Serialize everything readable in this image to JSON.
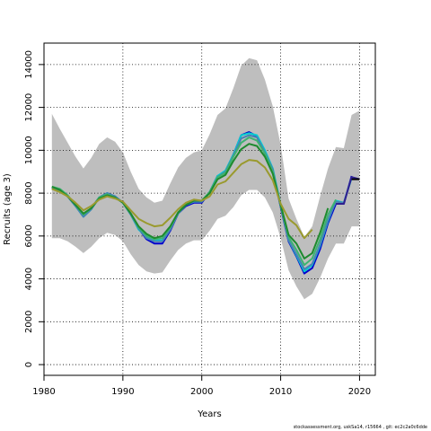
{
  "footer_text": "stockassessment.org, uskSa14, r15664 , git: ec2c2a0c6dde",
  "chart_data": {
    "type": "line",
    "xlabel": "Years",
    "ylabel": "Recruits (age 3)",
    "xlim": [
      1980,
      2022
    ],
    "ylim": [
      -500,
      15000
    ],
    "x_ticks": [
      1980,
      1990,
      2000,
      2010,
      2020
    ],
    "y_ticks": [
      0,
      2000,
      4000,
      6000,
      8000,
      10000,
      12000,
      14000
    ],
    "grid": "dotted",
    "confidence_band": {
      "color": "#bebebe",
      "x": [
        1981,
        1982,
        1983,
        1984,
        1985,
        1986,
        1987,
        1988,
        1989,
        1990,
        1991,
        1992,
        1993,
        1994,
        1995,
        1996,
        1997,
        1998,
        1999,
        2000,
        2001,
        2002,
        2003,
        2004,
        2005,
        2006,
        2007,
        2008,
        2009,
        2010,
        2011,
        2012,
        2013,
        2014,
        2015,
        2016,
        2017,
        2018,
        2019,
        2020
      ],
      "lower": [
        5900,
        5900,
        5750,
        5500,
        5200,
        5500,
        5900,
        6150,
        6050,
        5750,
        5150,
        4650,
        4350,
        4250,
        4300,
        4850,
        5350,
        5650,
        5800,
        5800,
        6250,
        6800,
        6950,
        7350,
        7900,
        8150,
        8150,
        7800,
        7100,
        5900,
        4400,
        3650,
        3050,
        3300,
        4050,
        4950,
        5650,
        5650,
        6450,
        6450
      ],
      "upper": [
        11700,
        11000,
        10350,
        9700,
        9150,
        9650,
        10300,
        10600,
        10400,
        9900,
        9000,
        8200,
        7800,
        7550,
        7650,
        8450,
        9200,
        9650,
        9900,
        10000,
        10750,
        11650,
        11950,
        12900,
        13950,
        14300,
        14200,
        13300,
        12050,
        10250,
        7750,
        6800,
        5950,
        6450,
        7850,
        9150,
        10150,
        10100,
        11650,
        11850
      ]
    },
    "series": [
      {
        "color": "#0000cd",
        "values": [
          8250,
          8150,
          7850,
          7400,
          6950,
          7300,
          7800,
          8000,
          7850,
          7550,
          7050,
          6350,
          5850,
          5650,
          5650,
          6250,
          7050,
          7400,
          7550,
          7550,
          8050,
          8800,
          9000,
          9800,
          10700,
          10850,
          10650,
          9850,
          9050,
          7350,
          5750,
          5050,
          4250,
          4500,
          5400,
          6600,
          7500,
          7500,
          8800,
          null
        ]
      },
      {
        "color": "#00ced1",
        "values": [
          8250,
          8150,
          7850,
          7400,
          6900,
          7250,
          7800,
          8000,
          7850,
          7550,
          7000,
          6300,
          5950,
          5800,
          5800,
          6350,
          7050,
          7450,
          7600,
          7600,
          8050,
          8800,
          9050,
          9800,
          10700,
          10800,
          10700,
          10000,
          9150,
          7450,
          5800,
          5100,
          4350,
          4650,
          5550,
          6700,
          7650,
          7550,
          8700,
          null
        ]
      },
      {
        "color": "#4682b4",
        "values": [
          8250,
          8150,
          7850,
          7400,
          6900,
          7250,
          7800,
          8000,
          7850,
          7550,
          7000,
          6350,
          5900,
          5750,
          5750,
          6300,
          7050,
          7450,
          7600,
          7600,
          8050,
          8750,
          9000,
          9750,
          10550,
          10700,
          10600,
          9900,
          9100,
          7400,
          5800,
          5150,
          4450,
          4700,
          5600,
          6750,
          7600,
          7550,
          8750,
          null
        ]
      },
      {
        "color": "#3cb371",
        "values": [
          8300,
          8200,
          7900,
          7450,
          7000,
          7300,
          7800,
          7950,
          7800,
          7550,
          7050,
          6400,
          6000,
          5850,
          5900,
          6400,
          7100,
          7500,
          7650,
          7650,
          8050,
          8750,
          8950,
          9700,
          10350,
          10600,
          10450,
          9850,
          9000,
          7400,
          5950,
          5350,
          4650,
          4950,
          5850,
          7000,
          7700,
          null,
          null,
          null
        ]
      },
      {
        "color": "#1e8a2e",
        "values": [
          8300,
          8150,
          7850,
          7450,
          7050,
          7300,
          7750,
          7900,
          7800,
          7550,
          7050,
          6450,
          6100,
          5900,
          6000,
          6450,
          7100,
          7450,
          7650,
          7650,
          8000,
          8650,
          8850,
          9500,
          10050,
          10300,
          10200,
          9700,
          8900,
          7450,
          6050,
          5650,
          4950,
          5200,
          6150,
          7300,
          null,
          null,
          null,
          null
        ]
      },
      {
        "color": "#9a9a2e",
        "values": [
          8200,
          8050,
          7850,
          7550,
          7200,
          7400,
          7700,
          7850,
          7750,
          7600,
          7200,
          6800,
          6600,
          6450,
          6500,
          6850,
          7250,
          7550,
          7700,
          7650,
          7850,
          8400,
          8550,
          8950,
          9350,
          9550,
          9500,
          9200,
          8600,
          7500,
          6800,
          6500,
          5900,
          6300,
          null,
          null,
          null,
          null,
          null,
          null
        ]
      },
      {
        "color": "#302090",
        "values": [
          null,
          null,
          null,
          null,
          null,
          null,
          null,
          null,
          null,
          null,
          null,
          null,
          null,
          null,
          null,
          null,
          null,
          null,
          null,
          null,
          null,
          null,
          null,
          null,
          null,
          null,
          null,
          null,
          null,
          null,
          null,
          null,
          null,
          null,
          null,
          null,
          7500,
          7500,
          8750,
          8650
        ]
      },
      {
        "color": "#000000",
        "values": [
          null,
          null,
          null,
          null,
          null,
          null,
          null,
          null,
          null,
          null,
          null,
          null,
          null,
          null,
          null,
          null,
          null,
          null,
          null,
          null,
          null,
          null,
          null,
          null,
          null,
          null,
          null,
          null,
          null,
          null,
          null,
          null,
          null,
          null,
          null,
          null,
          null,
          null,
          8650,
          8650
        ]
      }
    ]
  }
}
